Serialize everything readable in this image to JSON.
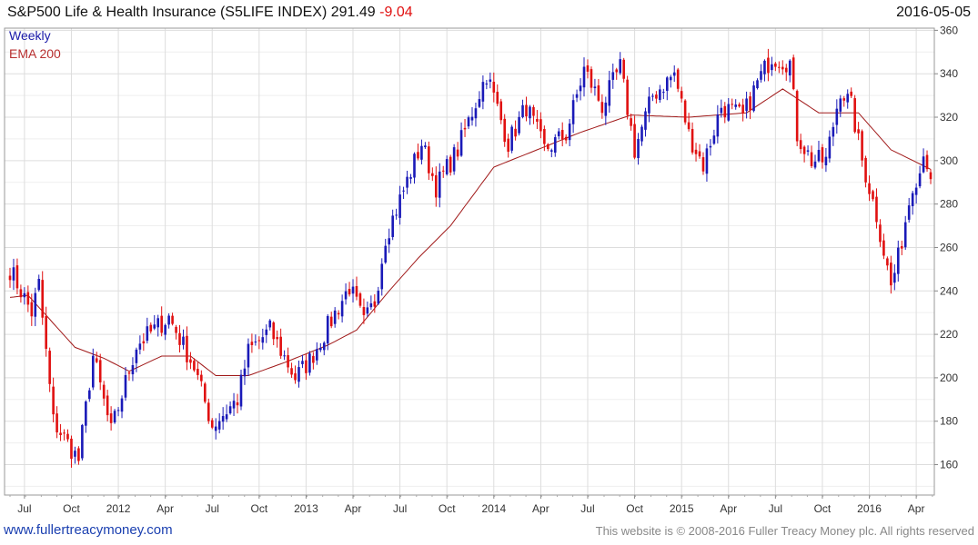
{
  "header": {
    "title": "S&P500 Life & Health Insurance",
    "symbol": "(S5LIFE INDEX)",
    "last": "291.49",
    "change": "-9.04",
    "date": "2016-05-05"
  },
  "legend": {
    "weekly": "Weekly",
    "ema": "EMA 200"
  },
  "footer": {
    "link": "www.fullertreacymoney.com",
    "copyright": "This website is © 2008-2016 Fuller Treacy Money plc. All rights reserved"
  },
  "colors": {
    "up": "#1a1ab8",
    "down": "#e01010",
    "ema": "#a01818",
    "grid": "#dddddd",
    "change": "#e01010"
  },
  "chart_data": {
    "type": "candlestick",
    "title": "S&P500 Life & Health Insurance (S5LIFE INDEX)",
    "frequency": "Weekly",
    "y_ticks": [
      160,
      180,
      200,
      220,
      240,
      260,
      280,
      300,
      320,
      340,
      360
    ],
    "ylim": [
      146,
      361
    ],
    "x_tick_labels": [
      "Jul",
      "Oct",
      "2012",
      "Apr",
      "Jul",
      "Oct",
      "2013",
      "Apr",
      "Jul",
      "Oct",
      "2014",
      "Apr",
      "Jul",
      "Oct",
      "2015",
      "Apr",
      "Jul",
      "Oct",
      "2016",
      "Apr"
    ],
    "x_tick_weeks": [
      4,
      17,
      30,
      43,
      56,
      69,
      82,
      95,
      108,
      121,
      134,
      147,
      160,
      173,
      186,
      199,
      212,
      225,
      238,
      251
    ],
    "total_weeks": 256,
    "key_levels": [
      {
        "week": 0,
        "close": 250
      },
      {
        "week": 6,
        "close": 230
      },
      {
        "week": 8,
        "close": 243
      },
      {
        "week": 12,
        "close": 180
      },
      {
        "week": 19,
        "close": 162
      },
      {
        "week": 23,
        "close": 210
      },
      {
        "week": 28,
        "close": 175
      },
      {
        "week": 35,
        "close": 215
      },
      {
        "week": 44,
        "close": 228
      },
      {
        "week": 51,
        "close": 205
      },
      {
        "week": 56,
        "close": 178
      },
      {
        "week": 63,
        "close": 190
      },
      {
        "week": 66,
        "close": 212
      },
      {
        "week": 72,
        "close": 222
      },
      {
        "week": 79,
        "close": 200
      },
      {
        "week": 83,
        "close": 208
      },
      {
        "week": 94,
        "close": 242
      },
      {
        "week": 98,
        "close": 225
      },
      {
        "week": 101,
        "close": 235
      },
      {
        "week": 104,
        "close": 265
      },
      {
        "week": 108,
        "close": 282
      },
      {
        "week": 114,
        "close": 308
      },
      {
        "week": 118,
        "close": 288
      },
      {
        "week": 124,
        "close": 305
      },
      {
        "week": 132,
        "close": 340
      },
      {
        "week": 138,
        "close": 308
      },
      {
        "week": 143,
        "close": 325
      },
      {
        "week": 148,
        "close": 305
      },
      {
        "week": 154,
        "close": 312
      },
      {
        "week": 159,
        "close": 342
      },
      {
        "week": 164,
        "close": 325
      },
      {
        "week": 169,
        "close": 343
      },
      {
        "week": 173,
        "close": 305
      },
      {
        "week": 178,
        "close": 330
      },
      {
        "week": 184,
        "close": 340
      },
      {
        "week": 188,
        "close": 312
      },
      {
        "week": 192,
        "close": 298
      },
      {
        "week": 197,
        "close": 325
      },
      {
        "week": 203,
        "close": 320
      },
      {
        "week": 207,
        "close": 336
      },
      {
        "week": 211,
        "close": 348
      },
      {
        "week": 216,
        "close": 345
      },
      {
        "week": 218,
        "close": 312
      },
      {
        "week": 222,
        "close": 300
      },
      {
        "week": 226,
        "close": 300
      },
      {
        "week": 230,
        "close": 333
      },
      {
        "week": 233,
        "close": 325
      },
      {
        "week": 236,
        "close": 300
      },
      {
        "week": 240,
        "close": 275
      },
      {
        "week": 244,
        "close": 242
      },
      {
        "week": 246,
        "close": 255
      },
      {
        "week": 250,
        "close": 290
      },
      {
        "week": 252,
        "close": 295
      },
      {
        "week": 253,
        "close": 306
      },
      {
        "week": 255,
        "close": 291.49
      }
    ],
    "ema_levels": [
      {
        "week": 0,
        "value": 237
      },
      {
        "week": 5,
        "value": 238
      },
      {
        "week": 18,
        "value": 214
      },
      {
        "week": 26,
        "value": 209
      },
      {
        "week": 33,
        "value": 203
      },
      {
        "week": 42,
        "value": 210
      },
      {
        "week": 50,
        "value": 210
      },
      {
        "week": 57,
        "value": 201
      },
      {
        "week": 66,
        "value": 201
      },
      {
        "week": 76,
        "value": 207
      },
      {
        "week": 88,
        "value": 215
      },
      {
        "week": 96,
        "value": 222
      },
      {
        "week": 105,
        "value": 240
      },
      {
        "week": 113,
        "value": 255
      },
      {
        "week": 122,
        "value": 270
      },
      {
        "week": 134,
        "value": 297
      },
      {
        "week": 146,
        "value": 305
      },
      {
        "week": 158,
        "value": 313
      },
      {
        "week": 172,
        "value": 321
      },
      {
        "week": 188,
        "value": 320
      },
      {
        "week": 204,
        "value": 322
      },
      {
        "week": 214,
        "value": 333
      },
      {
        "week": 224,
        "value": 322
      },
      {
        "week": 235,
        "value": 322
      },
      {
        "week": 244,
        "value": 305
      },
      {
        "week": 255,
        "value": 296
      }
    ]
  }
}
